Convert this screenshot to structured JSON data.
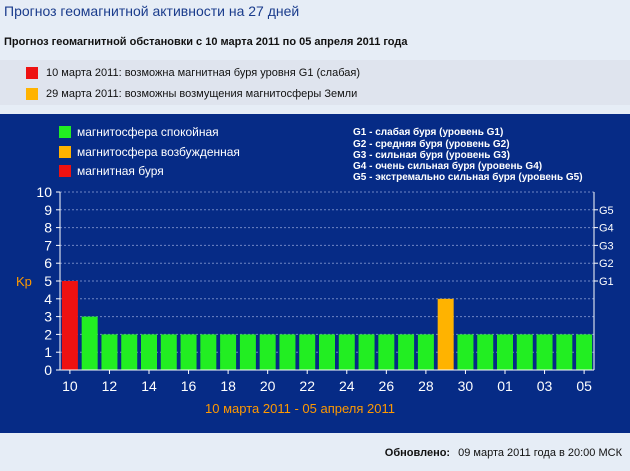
{
  "page": {
    "title": "Прогноз геомагнитной активности на 27 дней",
    "subtitle": "Прогноз геомагнитной обстановки с 10 марта 2011 по 05 апреля 2011 года"
  },
  "alerts": [
    {
      "color": "#ee1111",
      "text": "10 марта 2011: возможна магнитная буря уровня G1 (слабая)"
    },
    {
      "color": "#ffb300",
      "text": "29 марта 2011: возможны возмущения магнитосферы Земли"
    }
  ],
  "legend": [
    {
      "label": "магнитосфера спокойная",
      "color": "#22ee22"
    },
    {
      "label": "магнитосфера возбужденная",
      "color": "#ffb300"
    },
    {
      "label": "магнитная буря",
      "color": "#ee1111"
    }
  ],
  "storm_levels": [
    "G1 - слабая буря (уровень G1)",
    "G2 - средняя буря (уровень G2)",
    "G3 - сильная буря (уровень G3)",
    "G4 - очень сильная буря (уровень G4)",
    "G5 - экстремально сильная буря (уровень G5)"
  ],
  "chart_data": {
    "type": "bar",
    "ylabel": "Kp",
    "xlabel": "10 марта 2011 - 05 апреля 2011",
    "ylim": [
      0,
      10
    ],
    "yticks": [
      0,
      1,
      2,
      3,
      4,
      5,
      6,
      7,
      8,
      9,
      10
    ],
    "right_axis": [
      {
        "label": "G1",
        "kp": 5
      },
      {
        "label": "G2",
        "kp": 6
      },
      {
        "label": "G3",
        "kp": 7
      },
      {
        "label": "G4",
        "kp": 8
      },
      {
        "label": "G5",
        "kp": 9
      }
    ],
    "categories": [
      "10",
      "11",
      "12",
      "13",
      "14",
      "15",
      "16",
      "17",
      "18",
      "19",
      "20",
      "21",
      "22",
      "23",
      "24",
      "25",
      "26",
      "27",
      "28",
      "29",
      "30",
      "31",
      "01",
      "02",
      "03",
      "04",
      "05"
    ],
    "xtick_labels": [
      "10",
      "12",
      "14",
      "16",
      "18",
      "20",
      "22",
      "24",
      "26",
      "28",
      "30",
      "01",
      "03",
      "05"
    ],
    "values": [
      5,
      3,
      2,
      2,
      2,
      2,
      2,
      2,
      2,
      2,
      2,
      2,
      2,
      2,
      2,
      2,
      2,
      2,
      2,
      4,
      2,
      2,
      2,
      2,
      2,
      2,
      2
    ],
    "colors": [
      "#ee1111",
      "#22ee22",
      "#22ee22",
      "#22ee22",
      "#22ee22",
      "#22ee22",
      "#22ee22",
      "#22ee22",
      "#22ee22",
      "#22ee22",
      "#22ee22",
      "#22ee22",
      "#22ee22",
      "#22ee22",
      "#22ee22",
      "#22ee22",
      "#22ee22",
      "#22ee22",
      "#22ee22",
      "#ffb300",
      "#22ee22",
      "#22ee22",
      "#22ee22",
      "#22ee22",
      "#22ee22",
      "#22ee22",
      "#22ee22"
    ],
    "grid": true
  },
  "footer": {
    "label": "Обновлено:",
    "value": "09 марта 2011 года в 20:00 МСК"
  }
}
